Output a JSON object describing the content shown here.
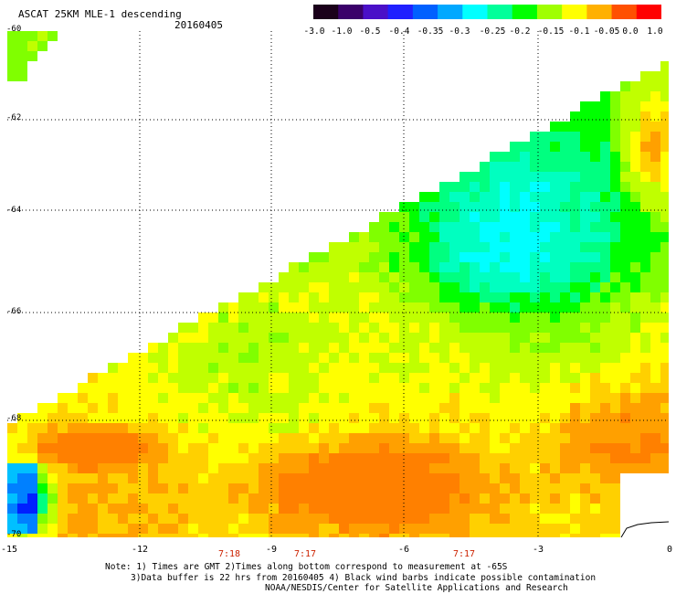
{
  "title": "ASCAT 25KM MLE-1 descending",
  "date": "20160405",
  "colorbar": {
    "labels": [
      "-3.0",
      "-1.0",
      "-0.5",
      "-0.4",
      "-0.35",
      "-0.3",
      "-0.25",
      "-0.2",
      "-0.15",
      "-0.1",
      "-0.05",
      "0.0",
      "1.0"
    ],
    "colors": [
      "#1a001a",
      "#3a006a",
      "#4a10c8",
      "#2020ff",
      "#0060ff",
      "#00a8ff",
      "#00ffff",
      "#00ff9a",
      "#00ff00",
      "#a0ff00",
      "#ffff00",
      "#ffb000",
      "#ff5000",
      "#ff0000"
    ]
  },
  "axes": {
    "lat_labels": [
      "-60",
      "-62",
      "-64",
      "-66",
      "-68",
      "-70"
    ],
    "lon_labels": [
      "-15",
      "-12",
      "-9",
      "-6",
      "-3",
      "0"
    ]
  },
  "times": [
    "7:18",
    "7:17",
    "7:17"
  ],
  "notes": {
    "line1": "Note: 1) Times are GMT 2)Times along bottom correspond to measurement at -65S",
    "line2": "3)Data buffer is 22 hrs from 20160405 4) Black wind barbs indicate possible contamination",
    "line3": "NOAA/NESDIS/Center for Satellite Applications and Research"
  }
}
